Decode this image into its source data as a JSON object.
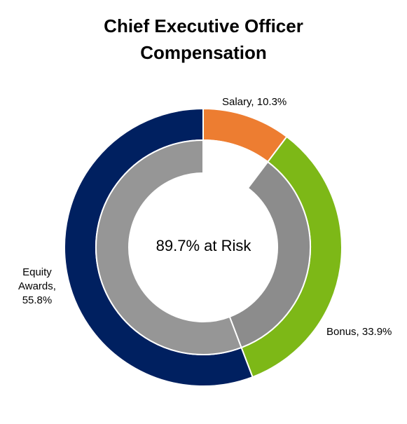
{
  "chart_data": {
    "type": "pie",
    "title_lines": [
      "Chief Executive Officer",
      "Compensation"
    ],
    "center_label": "89.7% at Risk",
    "outer_ring": [
      {
        "category": "Salary",
        "value": 10.3,
        "label": "Salary, 10.3%",
        "color": "#ED7D31"
      },
      {
        "category": "Bonus",
        "value": 33.9,
        "label": "Bonus, 33.9%",
        "color": "#7DB817"
      },
      {
        "category": "Equity Awards",
        "value": 55.8,
        "label_lines": [
          "Equity",
          "Awards,",
          "55.8%"
        ],
        "color": "#002060"
      }
    ],
    "inner_ring": [
      {
        "value": 10.3,
        "color": "#FFFFFF"
      },
      {
        "value": 33.9,
        "color": "#8C8C8C"
      },
      {
        "value": 55.8,
        "color": "#969696"
      }
    ]
  }
}
